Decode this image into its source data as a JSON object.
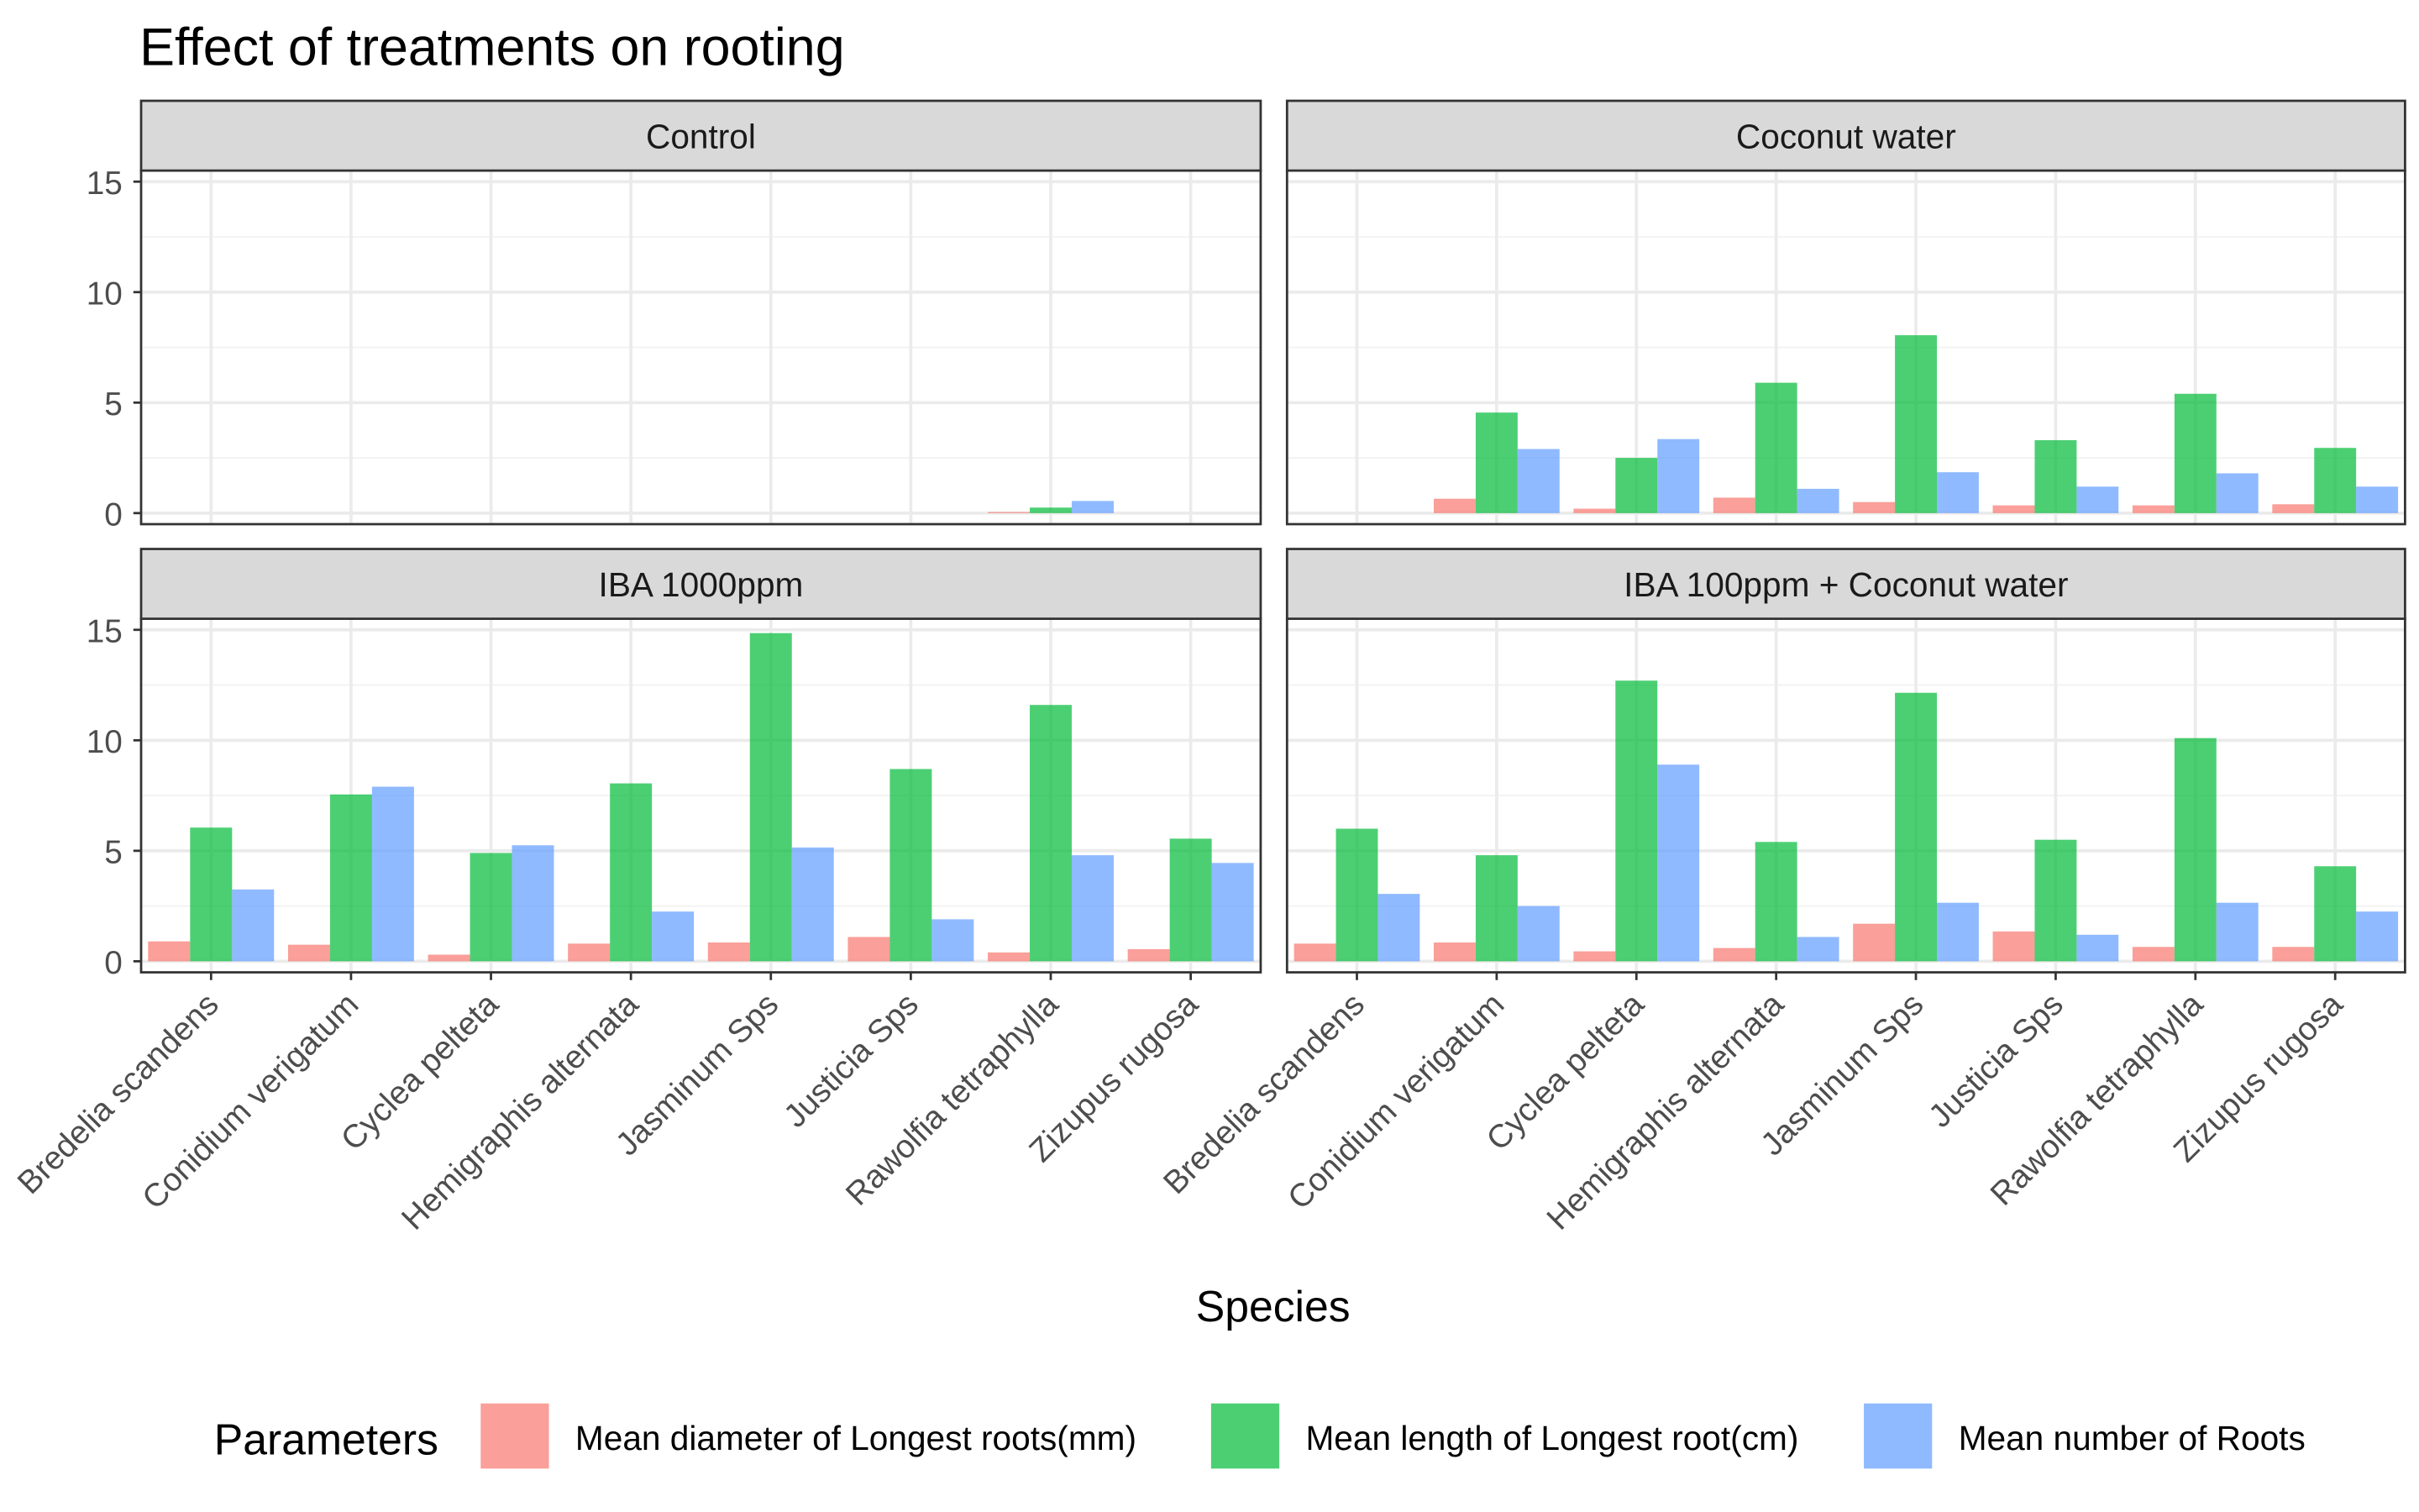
{
  "chart_data": {
    "type": "bar",
    "title": "Effect of treatments on rooting",
    "xlabel": "Species",
    "ylabel": "",
    "ylim": [
      -0.5,
      15.5
    ],
    "yticks": [
      0,
      5,
      10,
      15
    ],
    "grid": true,
    "layout": "facet 2x2",
    "legend_position": "bottom",
    "legend_title": "Parameters",
    "categories": [
      "Bredelia scandens",
      "Conidium verigatum",
      "Cyclea pelteta",
      "Hemigraphis alternata",
      "Jasminum Sps",
      "Justicia Sps",
      "Rawolfia tetraphylla",
      "Zizupus rugosa"
    ],
    "series_names": [
      "Mean diameter of Longest roots(mm)",
      "Mean length of Longest root(cm)",
      "Mean number of Roots"
    ],
    "series_colors": [
      "#F8766D",
      "#00BA38",
      "#619CFF"
    ],
    "bar_opacity": 0.7,
    "panels": [
      {
        "name": "Control",
        "series": [
          {
            "name": "Mean diameter of Longest roots(mm)",
            "values": [
              0,
              0,
              0,
              0,
              0,
              0,
              0.05,
              0
            ]
          },
          {
            "name": "Mean length of Longest root(cm)",
            "values": [
              0,
              0,
              0,
              0,
              0,
              0,
              0.25,
              0
            ]
          },
          {
            "name": "Mean number of Roots",
            "values": [
              0,
              0,
              0,
              0,
              0,
              0,
              0.55,
              0
            ]
          }
        ]
      },
      {
        "name": "Coconut water",
        "series": [
          {
            "name": "Mean diameter of Longest roots(mm)",
            "values": [
              0,
              0.65,
              0.2,
              0.7,
              0.5,
              0.35,
              0.35,
              0.4
            ]
          },
          {
            "name": "Mean length of Longest root(cm)",
            "values": [
              0,
              4.55,
              2.5,
              5.9,
              8.05,
              3.3,
              5.4,
              2.95
            ]
          },
          {
            "name": "Mean number of Roots",
            "values": [
              0,
              2.9,
              3.35,
              1.1,
              1.85,
              1.2,
              1.8,
              1.2
            ]
          }
        ]
      },
      {
        "name": "IBA 1000ppm",
        "series": [
          {
            "name": "Mean diameter of Longest roots(mm)",
            "values": [
              0.9,
              0.75,
              0.3,
              0.8,
              0.85,
              1.1,
              0.4,
              0.55
            ]
          },
          {
            "name": "Mean length of Longest root(cm)",
            "values": [
              6.05,
              7.55,
              4.9,
              8.05,
              14.85,
              8.7,
              11.6,
              5.55
            ]
          },
          {
            "name": "Mean number of Roots",
            "values": [
              3.25,
              7.9,
              5.25,
              2.25,
              5.15,
              1.9,
              4.8,
              4.45
            ]
          }
        ]
      },
      {
        "name": "IBA 100ppm + Coconut water",
        "series": [
          {
            "name": "Mean diameter of Longest roots(mm)",
            "values": [
              0.8,
              0.85,
              0.45,
              0.6,
              1.7,
              1.35,
              0.65,
              0.65
            ]
          },
          {
            "name": "Mean length of Longest root(cm)",
            "values": [
              6.0,
              4.8,
              12.7,
              5.4,
              12.15,
              5.5,
              10.1,
              4.3
            ]
          },
          {
            "name": "Mean number of Roots",
            "values": [
              3.05,
              2.5,
              8.9,
              1.1,
              2.65,
              1.2,
              2.65,
              2.25
            ]
          }
        ]
      }
    ]
  }
}
